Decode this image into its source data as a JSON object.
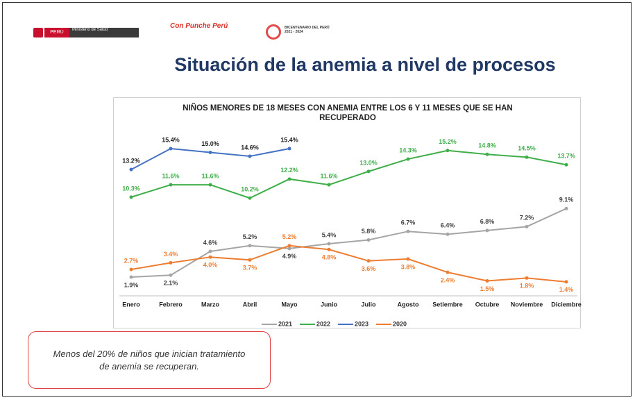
{
  "header": {
    "logos": {
      "peru": "PERÚ",
      "ministry": "Ministerio de Salud",
      "campaign": "Con Punche Perú",
      "bicentennial": "BICENTENARIO DEL PERÚ 2021 - 2024"
    },
    "title": "Situación de la anemia a nivel de procesos"
  },
  "chart_data": {
    "type": "line",
    "title": "NIÑOS MENORES DE 18 MESES CON ANEMIA ENTRE LOS 6 Y 11 MESES QUE SE HAN RECUPERADO",
    "categories": [
      "Enero",
      "Febrero",
      "Marzo",
      "Abril",
      "Mayo",
      "Junio",
      "Julio",
      "Agosto",
      "Setiembre",
      "Octubre",
      "Noviembre",
      "Diciembre"
    ],
    "series": [
      {
        "name": "2021",
        "color": "#a5a5a5",
        "values": [
          1.9,
          2.1,
          4.6,
          5.2,
          4.9,
          5.4,
          5.8,
          6.7,
          6.4,
          6.8,
          7.2,
          9.1
        ],
        "value_labels": [
          "1.9%",
          "2.1%",
          "4.6%",
          "5.2%",
          "4.9%",
          "5.4%",
          "5.8%",
          "6.7%",
          "6.4%",
          "6.8%",
          "7.2%",
          "9.1%"
        ]
      },
      {
        "name": "2022",
        "color": "#3fae49",
        "values": [
          10.3,
          11.6,
          11.6,
          10.2,
          12.2,
          11.6,
          13.0,
          14.3,
          15.2,
          14.8,
          14.5,
          13.7
        ],
        "value_labels": [
          "10.3%",
          "11.6%",
          "11.6%",
          "10.2%",
          "12.2%",
          "11.6%",
          "13.0%",
          "14.3%",
          "15.2%",
          "14.8%",
          "14.5%",
          "13.7%"
        ]
      },
      {
        "name": "2023",
        "color": "#4472c4",
        "values": [
          13.2,
          15.4,
          15.0,
          14.6,
          15.4,
          null,
          null,
          null,
          null,
          null,
          null,
          null
        ],
        "value_labels": [
          "13.2%",
          "15.4%",
          "15.0%",
          "14.6%",
          "15.4%",
          null,
          null,
          null,
          null,
          null,
          null,
          null
        ]
      },
      {
        "name": "2020",
        "color": "#ed7d31",
        "values": [
          2.7,
          3.4,
          4.0,
          3.7,
          5.2,
          4.8,
          3.6,
          3.8,
          2.4,
          1.5,
          1.8,
          1.4
        ],
        "value_labels": [
          "2.7%",
          "3.4%",
          "4.0%",
          "3.7%",
          "5.2%",
          "4.8%",
          "3.6%",
          "3.8%",
          "2.4%",
          "1.5%",
          "1.8%",
          "1.4%"
        ]
      }
    ]
  },
  "callout": "Menos del 20% de niños que inician tratamiento de anemia se recuperan."
}
